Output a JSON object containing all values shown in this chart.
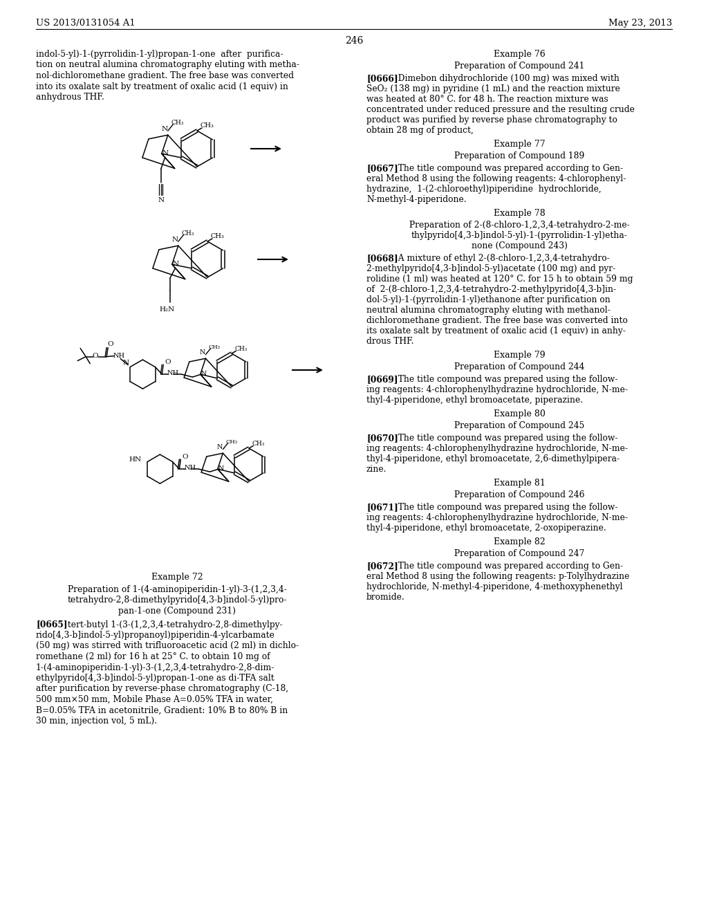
{
  "background_color": "#ffffff",
  "header_left": "US 2013/0131054 A1",
  "header_right": "May 23, 2013",
  "page_number": "246",
  "left_top_para": [
    "indol-5-yl)-1-(pyrrolidin-1-yl)propan-1-one  after  purifica-",
    "tion on neutral alumina chromatography eluting with metha-",
    "nol-dichloromethane gradient. The free base was converted",
    "into its oxalate salt by treatment of oxalic acid (1 equiv) in",
    "anhydrous THF."
  ],
  "example72_title": "Example 72",
  "example72_sub": [
    "Preparation of 1-(4-aminopiperidin-1-yl)-3-(1,2,3,4-",
    "tetrahydro-2,8-dimethylpyrido[4,3-b]indol-5-yl)pro-",
    "pan-1-one (Compound 231)"
  ],
  "example72_body": [
    "[0665]",
    "tert-butyl 1-(3-(1,2,3,4-tetrahydro-2,8-dimethylpy-",
    "rido[4,3-b]indol-5-yl)propanoyl)piperidin-4-ylcarbamate",
    "(50 mg) was stirred with trifluoroacetic acid (2 ml) in dichlo-",
    "romethane (2 ml) for 16 h at 25° C. to obtain 10 mg of",
    "1-(4-aminopiperidin-1-yl)-3-(1,2,3,4-tetrahydro-2,8-dim-",
    "ethylpyrido[4,3-b]indol-5-yl)propan-1-one as di-TFA salt",
    "after purification by reverse-phase chromatography (C-18,",
    "500 mm×50 mm, Mobile Phase A=0.05% TFA in water,",
    "B=0.05% TFA in acetonitrile, Gradient: 10% B to 80% B in",
    "30 min, injection vol, 5 mL)."
  ],
  "right_sections": [
    {
      "kind": "title",
      "lines": [
        "Example 76"
      ]
    },
    {
      "kind": "subtitle",
      "lines": [
        "Preparation of Compound 241"
      ]
    },
    {
      "kind": "para",
      "label": "[0666]",
      "lines": [
        "Dimebon dihydrochloride (100 mg) was mixed with",
        "SeO₂ (138 mg) in pyridine (1 mL) and the reaction mixture",
        "was heated at 80° C. for 48 h. The reaction mixture was",
        "concentrated under reduced pressure and the resulting crude",
        "product was purified by reverse phase chromatography to",
        "obtain 28 mg of product,"
      ]
    },
    {
      "kind": "title",
      "lines": [
        "Example 77"
      ]
    },
    {
      "kind": "subtitle",
      "lines": [
        "Preparation of Compound 189"
      ]
    },
    {
      "kind": "para",
      "label": "[0667]",
      "lines": [
        "The title compound was prepared according to Gen-",
        "eral Method 8 using the following reagents: 4-chlorophenyl-",
        "hydrazine,  1-(2-chloroethyl)piperidine  hydrochloride,",
        "N-methyl-4-piperidone."
      ]
    },
    {
      "kind": "title",
      "lines": [
        "Example 78"
      ]
    },
    {
      "kind": "subtitle",
      "lines": [
        "Preparation of 2-(8-chloro-1,2,3,4-tetrahydro-2-me-",
        "thylpyrido[4,3-b]indol-5-yl)-1-(pyrrolidin-1-yl)etha-",
        "none (Compound 243)"
      ]
    },
    {
      "kind": "para",
      "label": "[0668]",
      "lines": [
        "A mixture of ethyl 2-(8-chloro-1,2,3,4-tetrahydro-",
        "2-methylpyrido[4,3-b]indol-5-yl)acetate (100 mg) and pyr-",
        "rolidine (1 ml) was heated at 120° C. for 15 h to obtain 59 mg",
        "of  2-(8-chloro-1,2,3,4-tetrahydro-2-methylpyrido[4,3-b]in-",
        "dol-5-yl)-1-(pyrrolidin-1-yl)ethanone after purification on",
        "neutral alumina chromatography eluting with methanol-",
        "dichloromethane gradient. The free base was converted into",
        "its oxalate salt by treatment of oxalic acid (1 equiv) in anhy-",
        "drous THF."
      ]
    },
    {
      "kind": "title",
      "lines": [
        "Example 79"
      ]
    },
    {
      "kind": "subtitle",
      "lines": [
        "Preparation of Compound 244"
      ]
    },
    {
      "kind": "para",
      "label": "[0669]",
      "lines": [
        "The title compound was prepared using the follow-",
        "ing reagents: 4-chlorophenylhydrazine hydrochloride, N-me-",
        "thyl-4-piperidone, ethyl bromoacetate, piperazine."
      ]
    },
    {
      "kind": "title",
      "lines": [
        "Example 80"
      ]
    },
    {
      "kind": "subtitle",
      "lines": [
        "Preparation of Compound 245"
      ]
    },
    {
      "kind": "para",
      "label": "[0670]",
      "lines": [
        "The title compound was prepared using the follow-",
        "ing reagents: 4-chlorophenylhydrazine hydrochloride, N-me-",
        "thyl-4-piperidone, ethyl bromoacetate, 2,6-dimethylpipera-",
        "zine."
      ]
    },
    {
      "kind": "title",
      "lines": [
        "Example 81"
      ]
    },
    {
      "kind": "subtitle",
      "lines": [
        "Preparation of Compound 246"
      ]
    },
    {
      "kind": "para",
      "label": "[0671]",
      "lines": [
        "The title compound was prepared using the follow-",
        "ing reagents: 4-chlorophenylhydrazine hydrochloride, N-me-",
        "thyl-4-piperidone, ethyl bromoacetate, 2-oxopiperazine."
      ]
    },
    {
      "kind": "title",
      "lines": [
        "Example 82"
      ]
    },
    {
      "kind": "subtitle",
      "lines": [
        "Preparation of Compound 247"
      ]
    },
    {
      "kind": "para",
      "label": "[0672]",
      "lines": [
        "The title compound was prepared according to Gen-",
        "eral Method 8 using the following reagents: p-Tolylhydrazine",
        "hydrochloride, N-methyl-4-piperidone, 4-methoxyphenethyl",
        "bromide."
      ]
    }
  ]
}
